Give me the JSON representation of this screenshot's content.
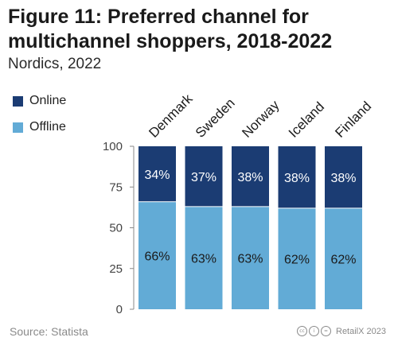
{
  "header": {
    "title": "Figure 11: Preferred channel for multichannel shoppers, 2018-2022",
    "subtitle": "Nordics, 2022"
  },
  "footer": {
    "source": "Source: Statista",
    "credit": "RetailX 2023",
    "license_icons": [
      "cc",
      "i",
      "="
    ]
  },
  "colors": {
    "online": "#1b3c73",
    "offline": "#62abd6",
    "axis": "#888888"
  },
  "chart_data": {
    "type": "bar",
    "stacked": true,
    "title": "Figure 11: Preferred channel for multichannel shoppers, 2018-2022",
    "subtitle": "Nordics, 2022",
    "categories": [
      "Denmark",
      "Sweden",
      "Norway",
      "Iceland",
      "Finland"
    ],
    "series": [
      {
        "name": "Offline",
        "values": [
          66,
          63,
          63,
          62,
          62
        ],
        "labels": [
          "66%",
          "63%",
          "63%",
          "62%",
          "62%"
        ]
      },
      {
        "name": "Online",
        "values": [
          34,
          37,
          38,
          38,
          38
        ],
        "labels": [
          "34%",
          "37%",
          "38%",
          "38%",
          "38%"
        ]
      }
    ],
    "ylim": [
      0,
      100
    ],
    "yticks": [
      0,
      25,
      50,
      75,
      100
    ],
    "legend": {
      "position": "top-left",
      "order": [
        "Online",
        "Offline"
      ]
    },
    "grid": false
  }
}
